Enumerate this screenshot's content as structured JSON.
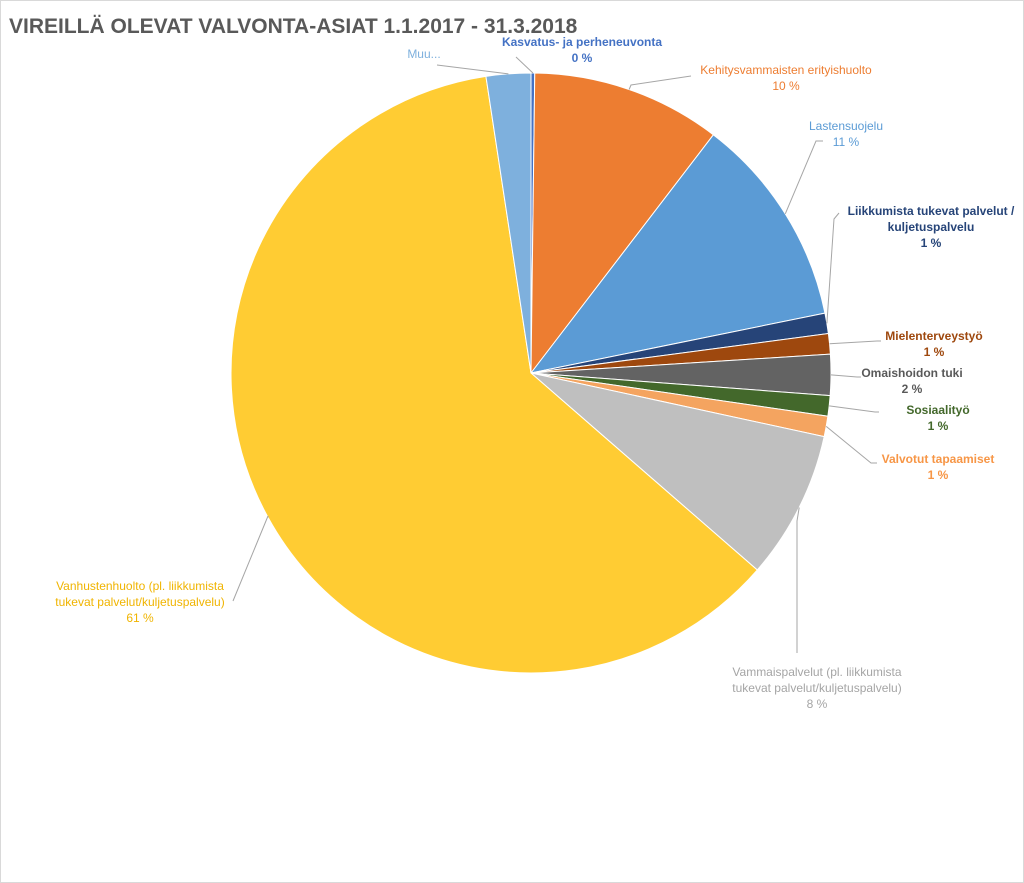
{
  "chart_data": {
    "type": "pie",
    "title": "VIREILLÄ OLEVAT VALVONTA-ASIAT 1.1.2017 - 31.3.2018",
    "slices": [
      {
        "lines": [
          "Kasvatus- ja perheneuvonta"
        ],
        "pct_label": "0 %",
        "value": 0.2,
        "color": "#4472c4",
        "label_color": "#4472c4"
      },
      {
        "lines": [
          "Kehitysvammaisten erityishuolto"
        ],
        "pct_label": "10 %",
        "value": 10.2,
        "color": "#ed7d31",
        "label_color": "#ed7d31"
      },
      {
        "lines": [
          "Lastensuojelu"
        ],
        "pct_label": "11 %",
        "value": 11.4,
        "color": "#5b9bd5",
        "label_color": "#5b9bd5"
      },
      {
        "lines": [
          "Liikkumista tukevat palvelut /",
          "kuljetuspalvelu"
        ],
        "pct_label": "1 %",
        "value": 1.1,
        "color": "#264478",
        "label_color": "#264478"
      },
      {
        "lines": [
          "Mielenterveystyö"
        ],
        "pct_label": "1 %",
        "value": 1.1,
        "color": "#9e480e",
        "label_color": "#9e480e"
      },
      {
        "lines": [
          "Omaishoidon tuki"
        ],
        "pct_label": "2 %",
        "value": 2.2,
        "color": "#636363",
        "label_color": "#595959"
      },
      {
        "lines": [
          "Sosiaalityö"
        ],
        "pct_label": "1 %",
        "value": 1.1,
        "color": "#43682b",
        "label_color": "#43682b"
      },
      {
        "lines": [
          "Valvotut tapaamiset"
        ],
        "pct_label": "1 %",
        "value": 1.1,
        "color": "#f4a460",
        "label_color": "#f79646"
      },
      {
        "lines": [
          "Vammaispalvelut (pl. liikkumista",
          "tukevat palvelut/kuljetuspalvelu)"
        ],
        "pct_label": "8 %",
        "value": 8.0,
        "color": "#bfbfbf",
        "label_color": "#a5a5a5"
      },
      {
        "lines": [
          "Vanhustenhuolto (pl. liikkumista",
          "tukevat palvelut/kuljetuspalvelu)"
        ],
        "pct_label": "61 %",
        "value": 61.2,
        "color": "#ffcc33",
        "label_color": "#f0b400"
      },
      {
        "lines": [
          "Muu..."
        ],
        "pct_label": "",
        "value": 2.4,
        "color": "#7eb0dd",
        "label_color": "#7eb0dd"
      }
    ]
  }
}
